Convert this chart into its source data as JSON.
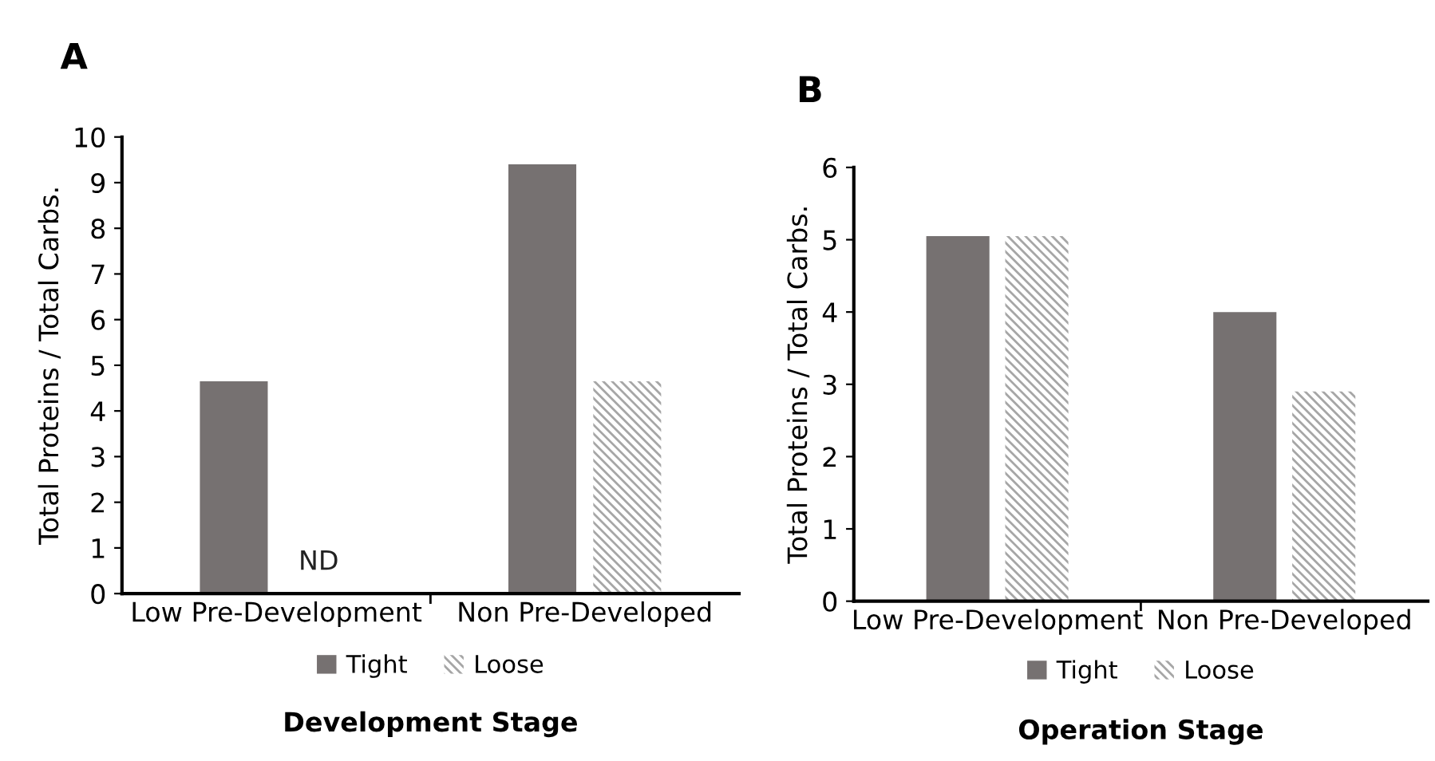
{
  "chart_data": [
    {
      "type": "bar",
      "title": "A",
      "xlabel": "Development Stage",
      "ylabel": "Total Proteins / Total Carbs.",
      "categories": [
        "Low Pre-Development",
        "Non Pre-Developed"
      ],
      "series": [
        {
          "name": "Tight",
          "color": "#767171",
          "values": [
            4.65,
            9.4
          ]
        },
        {
          "name": "Loose",
          "color": "#a6a6a6",
          "values": [
            null,
            4.65
          ]
        }
      ],
      "ylim": [
        0,
        10
      ],
      "yticks": [
        0,
        1,
        2,
        3,
        4,
        5,
        6,
        7,
        8,
        9,
        10
      ],
      "grid": false,
      "legend": "bottom",
      "annotations": [
        "ND"
      ]
    },
    {
      "type": "bar",
      "title": "B",
      "xlabel": "Operation Stage",
      "ylabel": "Total Proteins / Total Carbs.",
      "categories": [
        "Low Pre-Development",
        "Non Pre-Developed"
      ],
      "series": [
        {
          "name": "Tight",
          "color": "#767171",
          "values": [
            5.05,
            4.0
          ]
        },
        {
          "name": "Loose",
          "color": "#a6a6a6",
          "values": [
            5.05,
            2.9
          ]
        }
      ],
      "ylim": [
        0,
        6
      ],
      "yticks": [
        0,
        1,
        2,
        3,
        4,
        5,
        6
      ],
      "grid": false,
      "legend": "bottom"
    }
  ]
}
